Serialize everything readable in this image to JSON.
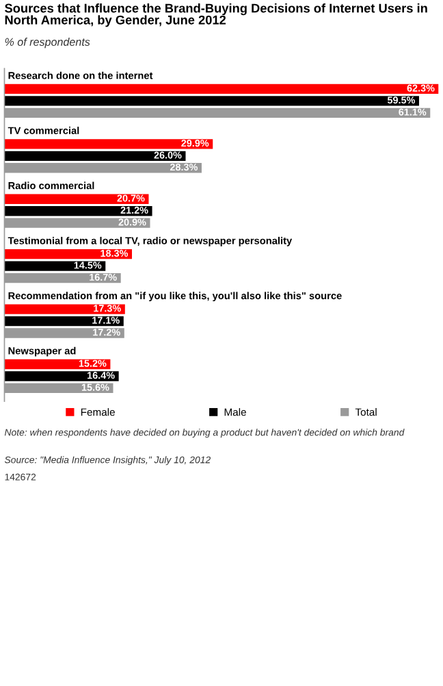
{
  "chart_data": {
    "type": "bar",
    "orientation": "horizontal",
    "title": "Sources that Influence the Brand-Buying Decisions of Internet Users in North America, by Gender, June 2012",
    "subtitle": "% of respondents",
    "categories": [
      "Research done on the internet",
      "TV commercial",
      "Radio commercial",
      "Testimonial from a local TV, radio or newspaper personality",
      "Recommendation from an \"if you like this, you'll also like this\" source",
      "Newspaper ad"
    ],
    "series": [
      {
        "name": "Female",
        "color": "#ff0000",
        "values": [
          62.3,
          29.9,
          20.7,
          18.3,
          17.3,
          15.2
        ],
        "value_labels": [
          "62.3%",
          "29.9%",
          "20.7%",
          "18.3%",
          "17.3%",
          "15.2%"
        ]
      },
      {
        "name": "Male",
        "color": "#000000",
        "values": [
          59.5,
          26.0,
          21.2,
          14.5,
          17.1,
          16.4
        ],
        "value_labels": [
          "59.5%",
          "26.0%",
          "21.2%",
          "14.5%",
          "17.1%",
          "16.4%"
        ]
      },
      {
        "name": "Total",
        "color": "#999999",
        "values": [
          61.1,
          28.3,
          20.9,
          16.7,
          17.2,
          15.6
        ],
        "value_labels": [
          "61.1%",
          "28.3%",
          "20.9%",
          "16.7%",
          "17.2%",
          "15.6%"
        ]
      }
    ],
    "legend": "bottom",
    "annotations": [
      "Note: when respondents have decided on buying a product but haven't decided on which brand",
      "Source: \"Media Influence Insights,\" July 10, 2012",
      "142672"
    ]
  }
}
